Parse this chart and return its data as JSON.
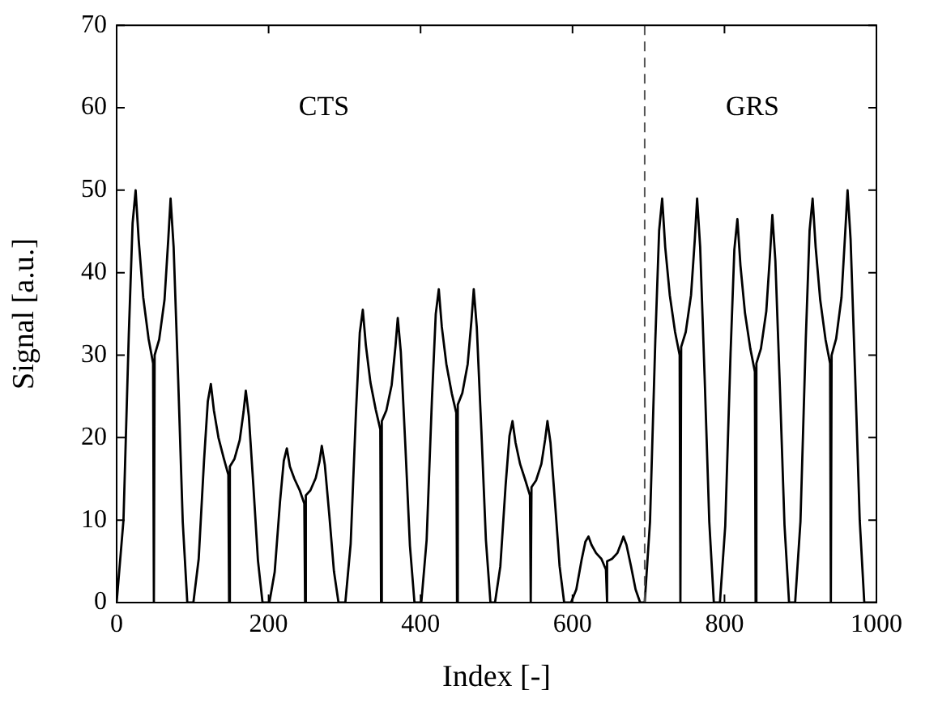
{
  "chart_data": {
    "type": "line",
    "xlabel": "Index [-]",
    "ylabel": "Signal [a.u.]",
    "xlim": [
      0,
      1000
    ],
    "ylim": [
      0,
      70
    ],
    "xticks": [
      0,
      200,
      400,
      600,
      800,
      1000
    ],
    "yticks": [
      0,
      10,
      20,
      30,
      40,
      50,
      60,
      70
    ],
    "grid": false,
    "legend": false,
    "marker": "none",
    "line_style": "solid",
    "ref_lines": [
      {
        "axis": "x",
        "value": 695,
        "color": "#555555",
        "line_style": "dashed"
      }
    ],
    "annotations": [
      "CTS",
      "GRS"
    ],
    "series": [
      {
        "color": "#000000",
        "x": [
          0,
          2,
          9,
          16,
          21,
          25,
          29,
          35,
          42,
          48,
          49,
          50,
          56,
          63,
          68,
          71,
          75,
          81,
          87,
          93,
          101,
          108,
          115,
          120,
          124,
          128,
          134,
          141,
          147,
          148,
          149,
          155,
          162,
          167,
          170,
          174,
          180,
          186,
          192,
          201,
          208,
          215,
          220,
          224,
          228,
          234,
          241,
          247,
          248,
          249,
          255,
          262,
          267,
          270,
          274,
          280,
          286,
          292,
          301,
          308,
          315,
          320,
          324,
          328,
          334,
          341,
          347,
          348,
          349,
          355,
          362,
          367,
          370,
          374,
          380,
          386,
          392,
          401,
          408,
          415,
          420,
          424,
          428,
          434,
          441,
          447,
          448,
          449,
          455,
          462,
          467,
          470,
          474,
          480,
          486,
          492,
          498,
          505,
          512,
          517,
          521,
          525,
          531,
          538,
          544,
          545,
          546,
          552,
          559,
          564,
          567,
          571,
          577,
          583,
          589,
          598,
          605,
          612,
          617,
          621,
          625,
          631,
          638,
          644,
          645,
          646,
          652,
          659,
          664,
          667,
          671,
          677,
          683,
          689,
          695,
          702,
          709,
          714,
          718,
          722,
          728,
          735,
          741,
          742,
          743,
          749,
          756,
          761,
          764,
          768,
          774,
          780,
          786,
          794,
          801,
          808,
          813,
          817,
          821,
          827,
          834,
          840,
          841,
          842,
          848,
          855,
          860,
          863,
          867,
          873,
          879,
          885,
          893,
          900,
          907,
          912,
          916,
          920,
          926,
          933,
          939,
          940,
          941,
          947,
          954,
          959,
          962,
          966,
          972,
          978,
          984,
          1000
        ],
        "values": [
          0,
          0,
          10,
          32.5,
          46,
          50,
          44,
          37,
          32,
          29,
          0,
          30,
          31.9,
          36.7,
          44.1,
          49,
          43.1,
          27,
          9.8,
          0,
          0,
          5.3,
          17.2,
          24.4,
          26.5,
          23.3,
          20,
          17.5,
          15.5,
          0,
          16.5,
          17.4,
          19.7,
          23.1,
          25.7,
          22.6,
          14.1,
          5.1,
          0,
          0,
          3.7,
          12.2,
          17.2,
          18.7,
          16.5,
          15,
          13.6,
          12,
          0,
          13,
          13.6,
          15.1,
          17.1,
          19,
          16.7,
          10.5,
          3.8,
          0,
          0,
          7.1,
          23.1,
          32.7,
          35.5,
          31.2,
          26.7,
          23.4,
          21,
          0,
          22,
          23.3,
          26.4,
          31.1,
          34.5,
          30.4,
          19,
          6.9,
          0,
          0,
          7.6,
          24.7,
          35,
          38,
          33.4,
          28.9,
          25.4,
          23,
          0,
          24,
          25.4,
          28.9,
          34.2,
          38,
          33.4,
          20.9,
          7.6,
          0,
          0,
          4.4,
          14.3,
          20.2,
          22,
          19.4,
          16.8,
          14.8,
          13,
          0,
          14,
          14.8,
          16.8,
          19.8,
          22,
          19.4,
          12.1,
          4.4,
          0,
          0,
          1.6,
          5.2,
          7.4,
          8,
          7,
          6,
          5.3,
          4,
          0,
          5,
          5.3,
          6,
          7.2,
          8,
          7,
          4.4,
          1.6,
          0,
          0,
          9.8,
          31.9,
          45.1,
          49,
          43.1,
          37.3,
          32.8,
          30,
          0,
          31,
          32.8,
          37.3,
          44.1,
          49,
          43.1,
          27,
          9.8,
          0,
          0,
          9.3,
          30.2,
          42.8,
          46.5,
          40.9,
          35.1,
          30.8,
          28,
          0,
          29,
          30.8,
          35.3,
          42.3,
          47,
          41.4,
          25.9,
          9.4,
          0,
          0,
          9.8,
          31.9,
          45.1,
          49,
          43.1,
          36.7,
          31.9,
          29,
          0,
          30,
          32,
          37,
          45,
          50,
          44,
          27.5,
          10,
          0,
          0
        ]
      }
    ]
  }
}
